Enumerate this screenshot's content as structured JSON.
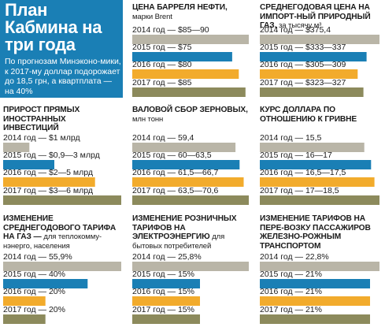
{
  "hero": {
    "title": "План Кабмина на три года",
    "subtitle": "По прогнозам Минэконо-мики, к 2017-му доллар подорожает до 18,5 грн, а квартплата — на 40%"
  },
  "colors": {
    "2014": "#b9b5a7",
    "2015": "#1a7fb5",
    "2016": "#f2ab2c",
    "2017": "#8c8a5c"
  },
  "chart_data": [
    {
      "id": "oil",
      "type": "bar",
      "title": "Цена барреля нефти,",
      "subtitle": "марки Brent",
      "categories": [
        "2014",
        "2015",
        "2016",
        "2017"
      ],
      "labels": [
        "2014 год — $85—90",
        "2015 год — $75",
        "2016 год — $80",
        "2017 год — $85"
      ],
      "values": [
        87.5,
        75,
        80,
        85
      ],
      "vmax": 87.5
    },
    {
      "id": "gas-import",
      "type": "bar",
      "title": "Среднегодовая цена на импорт-ный природный газ,",
      "subtitle": "за тысячу м³",
      "categories": [
        "2014",
        "2015",
        "2016",
        "2017"
      ],
      "labels": [
        "2014 год — $375,4",
        "2015 год — $333—337",
        "2016 год — $305—309",
        "2017 год — $323—327"
      ],
      "values": [
        375.4,
        335,
        307,
        325
      ],
      "vmax": 375.4
    },
    {
      "id": "fdi",
      "type": "bar",
      "title": "Прирост прямых иностранных инвестиций",
      "subtitle": "",
      "categories": [
        "2014",
        "2015",
        "2016",
        "2017"
      ],
      "labels": [
        "2014 год — $1 млрд",
        "2015 год — $0,9—3 млрд",
        "2016 год — $2—5 млрд",
        "2017 год — $3—6 млрд"
      ],
      "values": [
        1,
        1.95,
        3.5,
        4.5
      ],
      "vmax": 4.5
    },
    {
      "id": "grain",
      "type": "bar",
      "title": "Валовой сбор зерновых,",
      "subtitle": "млн тонн",
      "categories": [
        "2014",
        "2015",
        "2016",
        "2017"
      ],
      "labels": [
        "2014 год — 59,4",
        "2015 год — 60—63,5",
        "2016 год — 61,5—66,7",
        "2017 год — 63,5—70,6"
      ],
      "values": [
        59.4,
        61.75,
        64.1,
        67.05
      ],
      "vmax": 67.05
    },
    {
      "id": "usd",
      "type": "bar",
      "title": "Курс доллара по отношению к гривне",
      "subtitle": "",
      "categories": [
        "2014",
        "2015",
        "2016",
        "2017"
      ],
      "labels": [
        "2014 год — 15,5",
        "2015 год — 16—17",
        "2016 год — 16,5—17,5",
        "2017 год — 17—18,5"
      ],
      "values": [
        15.5,
        16.5,
        17,
        17.75
      ],
      "vmax": 17.75
    },
    {
      "id": "gas-tariff",
      "type": "bar",
      "title": "Изменение среднегодового тарифа на газ —",
      "subtitle": "для теплокомму-нэнерго, населения",
      "categories": [
        "2014",
        "2015",
        "2016",
        "2017"
      ],
      "labels": [
        "2014 год — 55,9%",
        "2015 год — 40%",
        "2016 год — 20%",
        "2017 год — 20%"
      ],
      "values": [
        55.9,
        40,
        20,
        20
      ],
      "vmax": 55.9
    },
    {
      "id": "power",
      "type": "bar",
      "title": "Изменение розничных тарифов на электроэнергию",
      "subtitle": "для бытовых потребителей",
      "categories": [
        "2014",
        "2015",
        "2016",
        "2017"
      ],
      "labels": [
        "2014 год — 25,8%",
        "2015 год — 15%",
        "2016 год — 15%",
        "2017 год — 15%"
      ],
      "values": [
        25.8,
        15,
        15,
        15
      ],
      "vmax": 25.8
    },
    {
      "id": "rail",
      "type": "bar",
      "title": "Изменение тарифов на пере-возку пассажиров железно-рожным транспортом",
      "subtitle": "",
      "categories": [
        "2014",
        "2015",
        "2016",
        "2017"
      ],
      "labels": [
        "2014 год — 22,8%",
        "2015 год — 21%",
        "2016 год — 21%",
        "2017 год — 21%"
      ],
      "values": [
        22.8,
        21,
        21,
        21
      ],
      "vmax": 22.8
    }
  ]
}
